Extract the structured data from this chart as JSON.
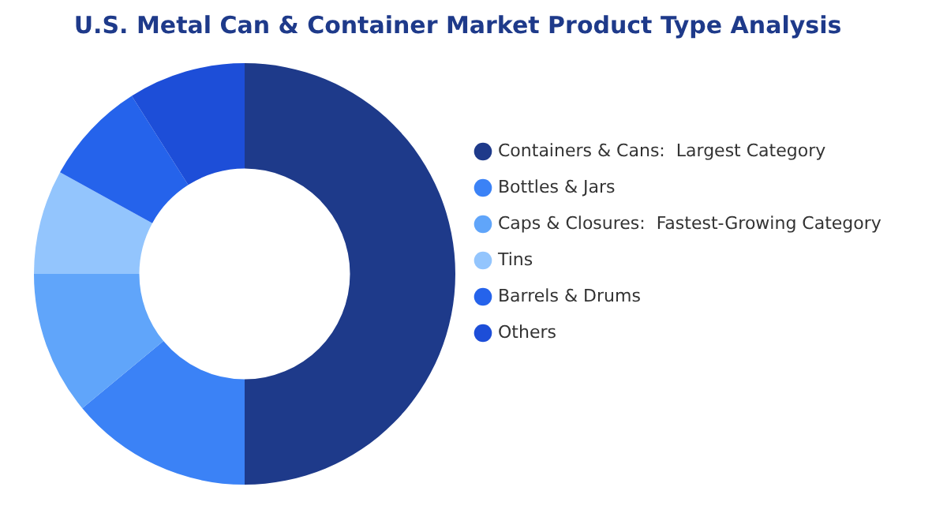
{
  "chart_data": {
    "type": "donut",
    "title": "U.S. Metal Can & Container Market Product Type Analysis",
    "categories": [
      "Containers & Cans:  Largest Category",
      "Bottles & Jars",
      "Caps & Closures:  Fastest-Growing Category",
      "Tins",
      "Barrels & Drums",
      "Others"
    ],
    "values": [
      50,
      14,
      11,
      8,
      8,
      9
    ],
    "colors": [
      "#1e3a8a",
      "#3b82f6",
      "#60a5fa",
      "#93c5fd",
      "#2563eb",
      "#1d4ed8"
    ],
    "legend": "right"
  }
}
